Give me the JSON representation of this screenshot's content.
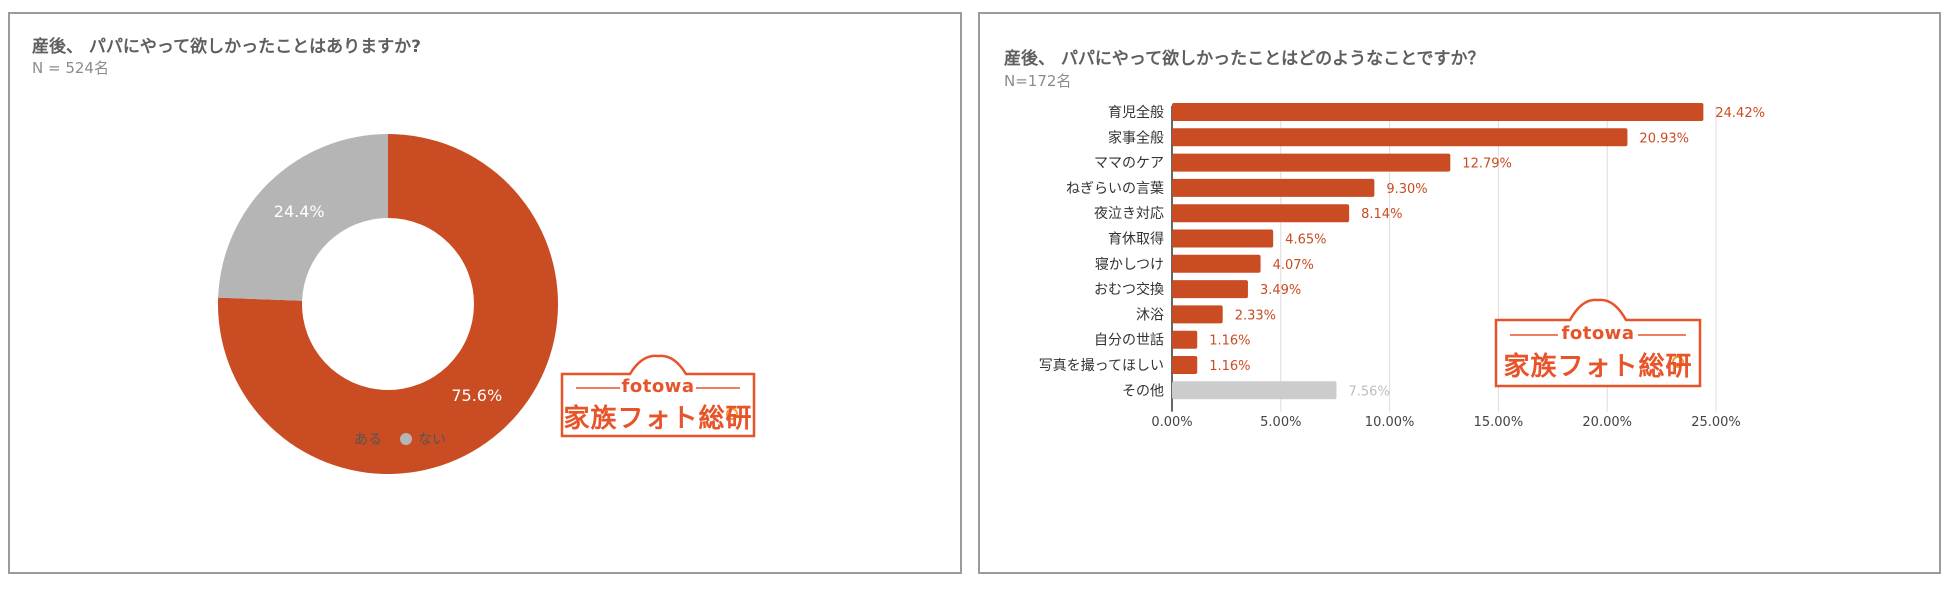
{
  "chart_data": [
    {
      "type": "pie",
      "title": "産後、 パパにやって欲しかったことはありますか?",
      "subtitle": "N = 524名",
      "labels": [
        "ある",
        "ない"
      ],
      "values": [
        75.6,
        24.4
      ],
      "value_labels": [
        "75.6%",
        "24.4%"
      ],
      "colors": [
        "#c94c22",
        "#b5b5b5"
      ],
      "donut": true,
      "legend": "bottom"
    },
    {
      "type": "bar",
      "orientation": "horizontal",
      "title": "産後、 パパにやって欲しかったことはどのようなことですか？",
      "subtitle": "N=172名",
      "categories": [
        "育児全般",
        "家事全般",
        "ママのケア",
        "ねぎらいの言葉",
        "夜泣き対応",
        "育休取得",
        "寝かしつけ",
        "おむつ交換",
        "沐浴",
        "自分の世話",
        "写真を撮ってほしい",
        "その他"
      ],
      "values": [
        24.42,
        20.93,
        12.79,
        9.3,
        8.14,
        4.65,
        4.07,
        3.49,
        2.33,
        1.16,
        1.16,
        7.56
      ],
      "value_labels": [
        "24.42%",
        "20.93%",
        "12.79%",
        "9.30%",
        "8.14%",
        "4.65%",
        "4.07%",
        "3.49%",
        "2.33%",
        "1.16%",
        "1.16%",
        "7.56%"
      ],
      "bar_colors": [
        "#c94c22",
        "#c94c22",
        "#c94c22",
        "#c94c22",
        "#c94c22",
        "#c94c22",
        "#c94c22",
        "#c94c22",
        "#c94c22",
        "#c94c22",
        "#c94c22",
        "#cccccc"
      ],
      "label_colors": [
        "#c94c22",
        "#c94c22",
        "#c94c22",
        "#c94c22",
        "#c94c22",
        "#c94c22",
        "#c94c22",
        "#c94c22",
        "#c94c22",
        "#c94c22",
        "#c94c22",
        "#bdbdbd"
      ],
      "xlim": [
        0,
        25
      ],
      "xticks": [
        "0.00%",
        "5.00%",
        "10.00%",
        "15.00%",
        "20.00%",
        "25.00%"
      ],
      "grid": true
    }
  ],
  "logo": {
    "brand": "fotowa",
    "text": "家族フォト総研"
  }
}
